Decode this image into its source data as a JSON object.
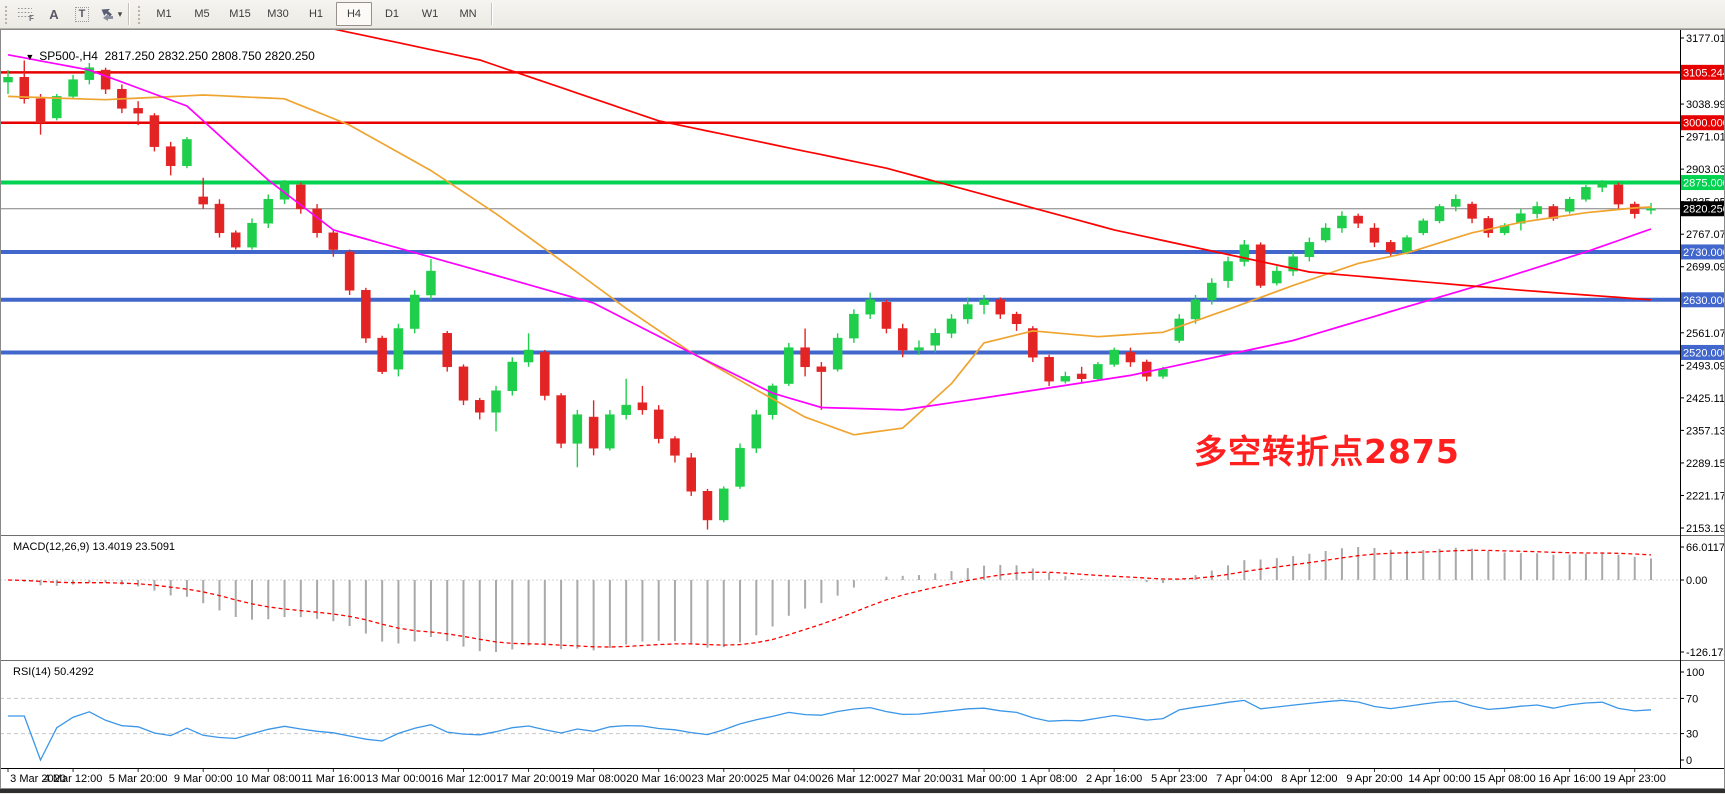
{
  "toolbar": {
    "tools": [
      {
        "name": "fibonacci-retracement-icon",
        "glyph": "F"
      },
      {
        "name": "text-label-tool-icon",
        "glyph": "A"
      },
      {
        "name": "text-box-tool-icon",
        "glyph": "T"
      },
      {
        "name": "arrow-objects-tool-icon",
        "glyph": ""
      },
      {
        "name": "objects-dropdown-caret",
        "glyph": "▾"
      }
    ],
    "timeframes": [
      "M1",
      "M5",
      "M15",
      "M30",
      "H1",
      "H4",
      "D1",
      "W1",
      "MN"
    ],
    "active_timeframe": "H4"
  },
  "chart": {
    "title_line": "SP500-,H4  2817.250 2832.250 2808.750 2820.250",
    "symbol": "SP500-",
    "timeframe": "H4"
  },
  "chart_data": {
    "type": "candlestick",
    "symbol": "SP500-",
    "timeframe": "H4",
    "current_bar": {
      "open": 2817.25,
      "high": 2832.25,
      "low": 2808.75,
      "close": 2820.25
    },
    "price_axis": {
      "ticks": [
        {
          "label": "3177.010",
          "price": 3177.01
        },
        {
          "label": "3038.990",
          "price": 3038.99
        },
        {
          "label": "2971.010",
          "price": 2971.01
        },
        {
          "label": "2903.030",
          "price": 2903.03
        },
        {
          "label": "2835.050",
          "price": 2835.05
        },
        {
          "label": "2767.070",
          "price": 2767.07
        },
        {
          "label": "2699.090",
          "price": 2699.09
        },
        {
          "label": "2561.070",
          "price": 2561.07
        },
        {
          "label": "2493.090",
          "price": 2493.09
        },
        {
          "label": "2425.110",
          "price": 2425.11
        },
        {
          "label": "2357.130",
          "price": 2357.13
        },
        {
          "label": "2289.150",
          "price": 2289.15
        },
        {
          "label": "2221.170",
          "price": 2221.17
        },
        {
          "label": "2153.190",
          "price": 2153.19
        }
      ]
    },
    "price_lines": [
      {
        "label": "3105.244",
        "price": 3105.244,
        "color": "#e60000",
        "role": "resistance"
      },
      {
        "label": "3000.000",
        "price": 3000.0,
        "color": "#e60000",
        "role": "resistance"
      },
      {
        "label": "2875.000",
        "price": 2875.0,
        "color": "#00d34f",
        "role": "pivot"
      },
      {
        "label": "2820.250",
        "price": 2820.25,
        "color": "#000000",
        "role": "current"
      },
      {
        "label": "2730.000",
        "price": 2730.0,
        "color": "#4166cc",
        "role": "support"
      },
      {
        "label": "2630.000",
        "price": 2630.0,
        "color": "#4166cc",
        "role": "support"
      },
      {
        "label": "2520.000",
        "price": 2520.0,
        "color": "#4166cc",
        "role": "support"
      }
    ],
    "candles": [
      [
        3085,
        3110,
        3060,
        3095
      ],
      [
        3095,
        3130,
        3040,
        3050
      ],
      [
        3050,
        3060,
        2975,
        3000
      ],
      [
        3010,
        3060,
        3005,
        3055
      ],
      [
        3055,
        3100,
        3050,
        3090
      ],
      [
        3090,
        3125,
        3080,
        3115
      ],
      [
        3110,
        3115,
        3060,
        3070
      ],
      [
        3070,
        3080,
        3020,
        3030
      ],
      [
        3030,
        3045,
        2995,
        3020
      ],
      [
        3015,
        3020,
        2940,
        2950
      ],
      [
        2950,
        2960,
        2890,
        2910
      ],
      [
        2910,
        2970,
        2905,
        2965
      ],
      [
        2845,
        2885,
        2820,
        2830
      ],
      [
        2830,
        2840,
        2760,
        2770
      ],
      [
        2770,
        2775,
        2735,
        2740
      ],
      [
        2740,
        2800,
        2735,
        2790
      ],
      [
        2790,
        2850,
        2780,
        2840
      ],
      [
        2840,
        2880,
        2830,
        2875
      ],
      [
        2870,
        2875,
        2810,
        2820
      ],
      [
        2820,
        2830,
        2760,
        2770
      ],
      [
        2770,
        2775,
        2720,
        2735
      ],
      [
        2730,
        2735,
        2640,
        2650
      ],
      [
        2650,
        2655,
        2540,
        2550
      ],
      [
        2550,
        2555,
        2475,
        2480
      ],
      [
        2485,
        2580,
        2470,
        2570
      ],
      [
        2570,
        2650,
        2560,
        2640
      ],
      [
        2640,
        2715,
        2630,
        2690
      ],
      [
        2560,
        2565,
        2480,
        2490
      ],
      [
        2490,
        2495,
        2410,
        2420
      ],
      [
        2420,
        2425,
        2380,
        2395
      ],
      [
        2395,
        2450,
        2355,
        2440
      ],
      [
        2440,
        2510,
        2430,
        2500
      ],
      [
        2500,
        2560,
        2490,
        2525
      ],
      [
        2520,
        2525,
        2420,
        2430
      ],
      [
        2430,
        2435,
        2320,
        2330
      ],
      [
        2330,
        2400,
        2280,
        2390
      ],
      [
        2385,
        2420,
        2305,
        2320
      ],
      [
        2320,
        2400,
        2315,
        2390
      ],
      [
        2390,
        2465,
        2380,
        2410
      ],
      [
        2415,
        2450,
        2390,
        2400
      ],
      [
        2400,
        2410,
        2330,
        2340
      ],
      [
        2340,
        2345,
        2290,
        2305
      ],
      [
        2300,
        2310,
        2220,
        2230
      ],
      [
        2230,
        2235,
        2150,
        2170
      ],
      [
        2170,
        2240,
        2165,
        2235
      ],
      [
        2240,
        2330,
        2235,
        2320
      ],
      [
        2320,
        2400,
        2310,
        2390
      ],
      [
        2390,
        2455,
        2380,
        2450
      ],
      [
        2455,
        2540,
        2450,
        2530
      ],
      [
        2530,
        2570,
        2470,
        2490
      ],
      [
        2490,
        2500,
        2400,
        2480
      ],
      [
        2485,
        2560,
        2480,
        2550
      ],
      [
        2550,
        2610,
        2540,
        2600
      ],
      [
        2600,
        2645,
        2590,
        2630
      ],
      [
        2625,
        2630,
        2560,
        2570
      ],
      [
        2570,
        2580,
        2510,
        2525
      ],
      [
        2525,
        2545,
        2515,
        2530
      ],
      [
        2535,
        2570,
        2520,
        2560
      ],
      [
        2560,
        2600,
        2550,
        2590
      ],
      [
        2590,
        2635,
        2580,
        2620
      ],
      [
        2620,
        2640,
        2600,
        2630
      ],
      [
        2630,
        2635,
        2590,
        2600
      ],
      [
        2600,
        2605,
        2565,
        2580
      ],
      [
        2570,
        2575,
        2500,
        2510
      ],
      [
        2510,
        2515,
        2450,
        2460
      ],
      [
        2460,
        2480,
        2455,
        2470
      ],
      [
        2475,
        2490,
        2455,
        2465
      ],
      [
        2465,
        2500,
        2460,
        2495
      ],
      [
        2495,
        2530,
        2490,
        2525
      ],
      [
        2520,
        2530,
        2490,
        2500
      ],
      [
        2500,
        2505,
        2460,
        2470
      ],
      [
        2470,
        2490,
        2465,
        2485
      ],
      [
        2545,
        2600,
        2540,
        2590
      ],
      [
        2590,
        2640,
        2580,
        2630
      ],
      [
        2630,
        2675,
        2620,
        2665
      ],
      [
        2670,
        2720,
        2655,
        2710
      ],
      [
        2710,
        2755,
        2700,
        2745
      ],
      [
        2745,
        2750,
        2655,
        2660
      ],
      [
        2665,
        2700,
        2660,
        2690
      ],
      [
        2690,
        2730,
        2680,
        2720
      ],
      [
        2720,
        2760,
        2710,
        2750
      ],
      [
        2755,
        2790,
        2750,
        2780
      ],
      [
        2780,
        2815,
        2770,
        2805
      ],
      [
        2805,
        2810,
        2780,
        2790
      ],
      [
        2780,
        2790,
        2740,
        2750
      ],
      [
        2750,
        2755,
        2720,
        2730
      ],
      [
        2730,
        2765,
        2725,
        2760
      ],
      [
        2770,
        2800,
        2765,
        2795
      ],
      [
        2795,
        2830,
        2790,
        2825
      ],
      [
        2825,
        2850,
        2815,
        2840
      ],
      [
        2830,
        2835,
        2790,
        2800
      ],
      [
        2800,
        2805,
        2760,
        2770
      ],
      [
        2770,
        2790,
        2765,
        2785
      ],
      [
        2790,
        2820,
        2775,
        2810
      ],
      [
        2810,
        2835,
        2800,
        2825
      ],
      [
        2825,
        2830,
        2795,
        2800
      ],
      [
        2815,
        2845,
        2810,
        2840
      ],
      [
        2840,
        2870,
        2835,
        2865
      ],
      [
        2865,
        2880,
        2855,
        2875
      ],
      [
        2870,
        2875,
        2820,
        2830
      ],
      [
        2830,
        2835,
        2800,
        2810
      ],
      [
        2817.25,
        2832.25,
        2808.75,
        2820.25
      ]
    ],
    "colors": {
      "bull": "#1fce4a",
      "bear": "#e32424"
    },
    "time_labels": [
      {
        "label": "3 Mar 2020",
        "bar": 0
      },
      {
        "label": "4 Mar 12:00",
        "bar": 4
      },
      {
        "label": "5 Mar 20:00",
        "bar": 8
      },
      {
        "label": "9 Mar 00:00",
        "bar": 12
      },
      {
        "label": "10 Mar 08:00",
        "bar": 16
      },
      {
        "label": "11 Mar 16:00",
        "bar": 20
      },
      {
        "label": "13 Mar 00:00",
        "bar": 24
      },
      {
        "label": "16 Mar 12:00",
        "bar": 28
      },
      {
        "label": "17 Mar 20:00",
        "bar": 32
      },
      {
        "label": "19 Mar 08:00",
        "bar": 36
      },
      {
        "label": "20 Mar 16:00",
        "bar": 40
      },
      {
        "label": "23 Mar 20:00",
        "bar": 44
      },
      {
        "label": "25 Mar 04:00",
        "bar": 48
      },
      {
        "label": "26 Mar 12:00",
        "bar": 52
      },
      {
        "label": "27 Mar 20:00",
        "bar": 56
      },
      {
        "label": "31 Mar 00:00",
        "bar": 60
      },
      {
        "label": "1 Apr 08:00",
        "bar": 64
      },
      {
        "label": "2 Apr 16:00",
        "bar": 68
      },
      {
        "label": "5 Apr 23:00",
        "bar": 72
      },
      {
        "label": "7 Apr 04:00",
        "bar": 76
      },
      {
        "label": "8 Apr 12:00",
        "bar": 80
      },
      {
        "label": "9 Apr 20:00",
        "bar": 84
      },
      {
        "label": "14 Apr 00:00",
        "bar": 88
      },
      {
        "label": "15 Apr 08:00",
        "bar": 92
      },
      {
        "label": "16 Apr 16:00",
        "bar": 96
      },
      {
        "label": "19 Apr 23:00",
        "bar": 100
      }
    ],
    "moving_averages": [
      {
        "name": "fast-ma",
        "color": "#efa430",
        "points": [
          [
            0,
            3055
          ],
          [
            6,
            3048
          ],
          [
            12,
            3058
          ],
          [
            17,
            3050
          ],
          [
            21,
            2995
          ],
          [
            26,
            2900
          ],
          [
            30,
            2810
          ],
          [
            34,
            2712
          ],
          [
            38,
            2612
          ],
          [
            42,
            2520
          ],
          [
            46,
            2442
          ],
          [
            49,
            2385
          ],
          [
            52,
            2348
          ],
          [
            55,
            2362
          ],
          [
            58,
            2455
          ],
          [
            60,
            2540
          ],
          [
            63,
            2565
          ],
          [
            67,
            2553
          ],
          [
            71,
            2562
          ],
          [
            75,
            2610
          ],
          [
            79,
            2660
          ],
          [
            83,
            2706
          ],
          [
            86,
            2728
          ],
          [
            90,
            2770
          ],
          [
            93,
            2792
          ],
          [
            97,
            2812
          ],
          [
            100,
            2822
          ],
          [
            101,
            2824
          ]
        ]
      },
      {
        "name": "mid-ma",
        "color": "#ff00ff",
        "points": [
          [
            0,
            3142
          ],
          [
            5,
            3110
          ],
          [
            11,
            3035
          ],
          [
            16,
            2880
          ],
          [
            20,
            2776
          ],
          [
            28,
            2700
          ],
          [
            36,
            2623
          ],
          [
            42,
            2519
          ],
          [
            47,
            2435
          ],
          [
            50,
            2405
          ],
          [
            55,
            2400
          ],
          [
            60,
            2425
          ],
          [
            69,
            2472
          ],
          [
            79,
            2545
          ],
          [
            92,
            2676
          ],
          [
            97,
            2730
          ],
          [
            101,
            2778
          ]
        ]
      },
      {
        "name": "slow-ma",
        "color": "#ff0000",
        "points": [
          [
            20,
            3196
          ],
          [
            29,
            3131
          ],
          [
            40,
            3004
          ],
          [
            54,
            2905
          ],
          [
            68,
            2776
          ],
          [
            80,
            2688
          ],
          [
            93,
            2650
          ],
          [
            101,
            2630
          ]
        ]
      }
    ],
    "macd": {
      "label_line": "MACD(12,26,9) 13.4019 23.5091",
      "fast": 12,
      "slow": 26,
      "signal_period": 9,
      "main_value": 13.4019,
      "signal_value": 23.5091,
      "axis_max": "66.0117",
      "axis_zero": "0.00",
      "axis_min": "-126.173",
      "histogram_color": "#a9a9a9",
      "signal_color": "#ff0000"
    },
    "rsi": {
      "label_line": "RSI(14) 50.4292",
      "period": 14,
      "value": 50.4292,
      "axis": [
        "100",
        "70",
        "30",
        "0"
      ],
      "levels": [
        70,
        30
      ],
      "line_color": "#3b96e8"
    },
    "annotation": {
      "text": "多空转折点2875",
      "color": "#ff1f1f"
    }
  }
}
